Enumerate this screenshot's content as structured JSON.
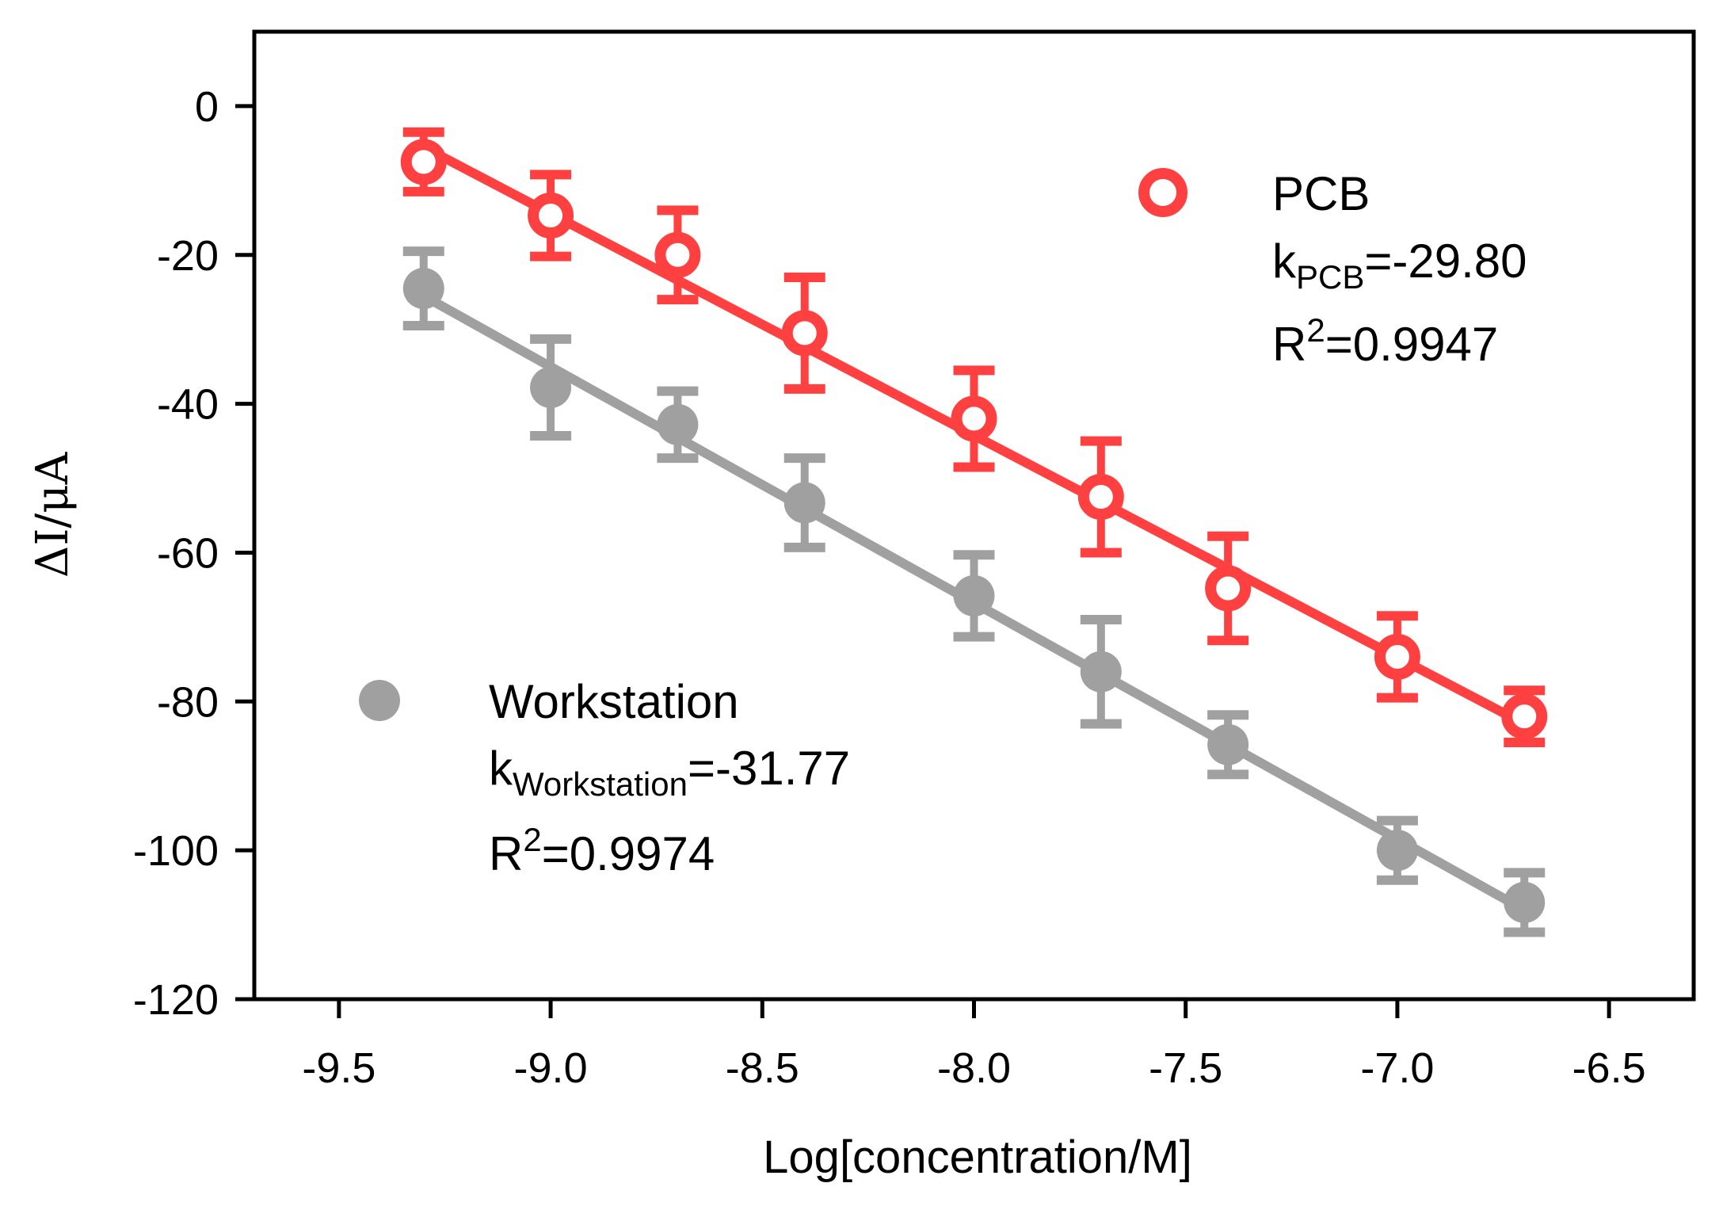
{
  "chart_data": {
    "type": "scatter",
    "title": "",
    "xlabel": "Log[concentration/M]",
    "ylabel": "ΔI/μA",
    "xlim": [
      -9.7,
      -6.3
    ],
    "ylim": [
      -120,
      10
    ],
    "xticks": [
      -9.5,
      -9.0,
      -8.5,
      -8.0,
      -7.5,
      -7.0,
      -6.5
    ],
    "xtick_labels": [
      "-9.5",
      "-9.0",
      "-8.5",
      "-8.0",
      "-7.5",
      "-7.0",
      "-6.5"
    ],
    "yticks": [
      0,
      -20,
      -40,
      -60,
      -80,
      -100,
      -120
    ],
    "ytick_labels": [
      "0",
      "-20",
      "-40",
      "-60",
      "-80",
      "-100",
      "-120"
    ],
    "grid": false,
    "series": [
      {
        "name": "PCB",
        "color": "#ff4040",
        "marker": "open-circle",
        "x": [
          -9.3,
          -9.0,
          -8.7,
          -8.4,
          -8.0,
          -7.7,
          -7.4,
          -7.0,
          -6.7
        ],
        "y": [
          -7.5,
          -14.7,
          -20.0,
          -30.5,
          -42.0,
          -52.5,
          -64.8,
          -74.0,
          -82.0
        ],
        "err": [
          4.0,
          5.5,
          6.0,
          7.5,
          6.5,
          7.5,
          7.0,
          5.5,
          3.5
        ],
        "fit_line": {
          "x": [
            -9.3,
            -6.7
          ],
          "y": [
            -5.5,
            -83.0
          ]
        },
        "slope_label": {
          "k": "k",
          "sub": "PCB",
          "value": "=-29.80"
        },
        "r2_label": {
          "r": "R",
          "sup": "2",
          "value": "=0.9947"
        }
      },
      {
        "name": "Workstation",
        "color": "#a0a0a0",
        "marker": "filled-circle",
        "x": [
          -9.3,
          -9.0,
          -8.7,
          -8.4,
          -8.0,
          -7.7,
          -7.4,
          -7.0,
          -6.7
        ],
        "y": [
          -24.5,
          -37.8,
          -42.8,
          -53.3,
          -65.8,
          -76.0,
          -85.8,
          -100.0,
          -107.0
        ],
        "err": [
          5.0,
          6.5,
          4.5,
          6.0,
          5.5,
          7.0,
          4.0,
          4.0,
          4.0
        ],
        "fit_line": {
          "x": [
            -9.3,
            -6.7
          ],
          "y": [
            -25.5,
            -108.0
          ]
        },
        "slope_label": {
          "k": "k",
          "sub": "Workstation",
          "value": "=-31.77"
        },
        "r2_label": {
          "r": "R",
          "sup": "2",
          "value": "=0.9974"
        }
      }
    ]
  }
}
